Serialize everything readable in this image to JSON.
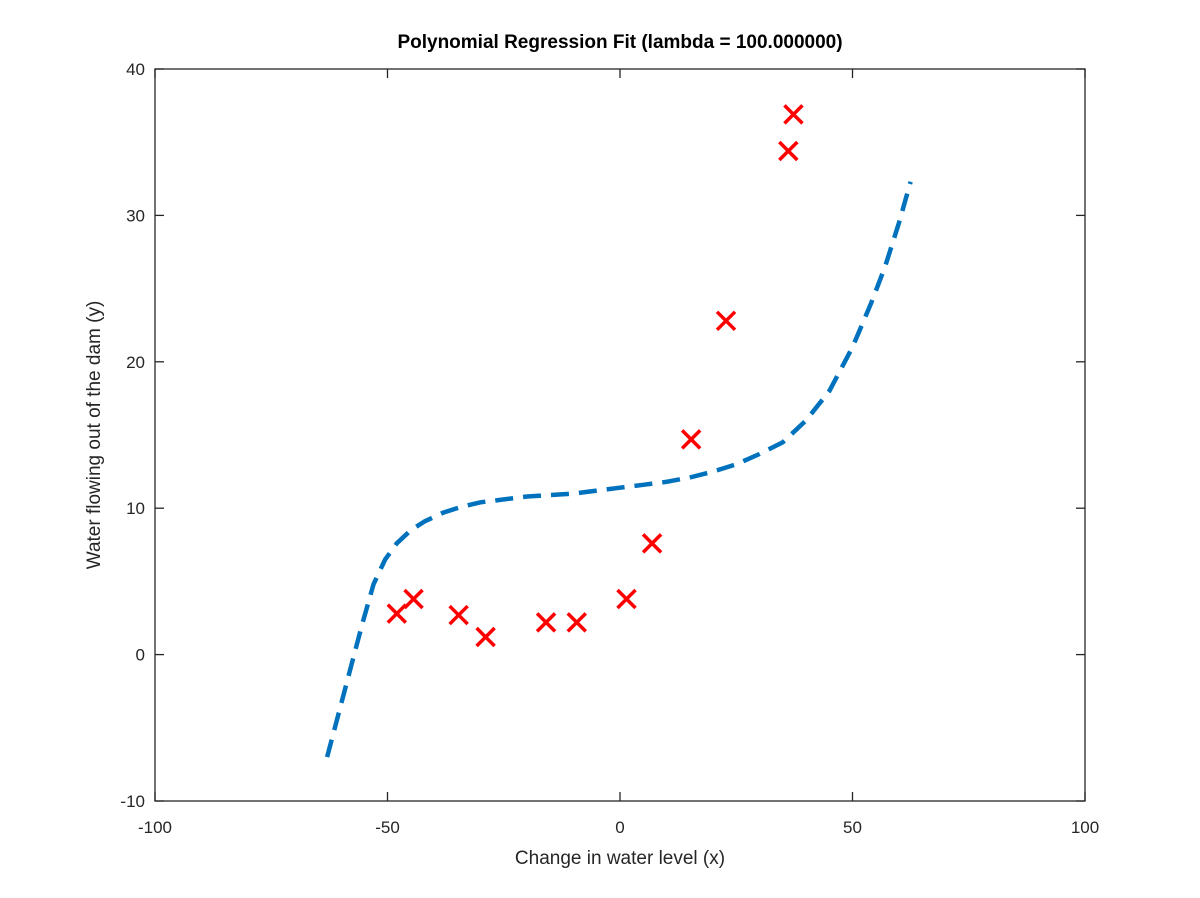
{
  "chart_data": {
    "type": "scatter",
    "title": "Polynomial Regression Fit (lambda = 100.000000)",
    "xlabel": "Change in water level (x)",
    "ylabel": "Water flowing out of the dam (y)",
    "xlim": [
      -100,
      100
    ],
    "ylim": [
      -10,
      40
    ],
    "xticks": [
      -100,
      -50,
      0,
      50,
      100
    ],
    "xtick_labels": [
      "-100",
      "-50",
      "0",
      "50",
      "100"
    ],
    "yticks": [
      -10,
      0,
      10,
      20,
      30,
      40
    ],
    "ytick_labels": [
      "-10",
      "0",
      "10",
      "20",
      "30",
      "40"
    ],
    "grid": false,
    "series": [
      {
        "kind": "scatter",
        "marker": "x",
        "color": "#ff0000",
        "points": [
          [
            -48,
            2.8
          ],
          [
            -44.4,
            3.8
          ],
          [
            -34.7,
            2.7
          ],
          [
            -28.9,
            1.2
          ],
          [
            -15.9,
            2.2
          ],
          [
            -9.3,
            2.2
          ],
          [
            1.4,
            3.8
          ],
          [
            6.9,
            7.6
          ],
          [
            15.3,
            14.7
          ],
          [
            22.8,
            22.8
          ],
          [
            36.2,
            34.4
          ],
          [
            37.3,
            36.9
          ]
        ]
      },
      {
        "kind": "line",
        "style": "dashed",
        "color": "#0072bd",
        "points": [
          [
            -63,
            -7
          ],
          [
            -60.5,
            -4
          ],
          [
            -58,
            -1
          ],
          [
            -55.5,
            2
          ],
          [
            -53,
            4.8
          ],
          [
            -50.5,
            6.5
          ],
          [
            -48,
            7.6
          ],
          [
            -45,
            8.5
          ],
          [
            -42,
            9.1
          ],
          [
            -38,
            9.7
          ],
          [
            -34,
            10.1
          ],
          [
            -30,
            10.4
          ],
          [
            -25,
            10.6
          ],
          [
            -20,
            10.8
          ],
          [
            -15,
            10.9
          ],
          [
            -10,
            11.0
          ],
          [
            -5,
            11.2
          ],
          [
            0,
            11.4
          ],
          [
            5,
            11.6
          ],
          [
            10,
            11.8
          ],
          [
            15,
            12.1
          ],
          [
            20,
            12.5
          ],
          [
            25,
            13.0
          ],
          [
            30,
            13.7
          ],
          [
            35,
            14.5
          ],
          [
            40,
            16.0
          ],
          [
            45,
            18.0
          ],
          [
            50,
            21.0
          ],
          [
            54,
            24.0
          ],
          [
            57,
            26.5
          ],
          [
            60,
            29.5
          ],
          [
            62.5,
            32.3
          ]
        ]
      }
    ]
  }
}
